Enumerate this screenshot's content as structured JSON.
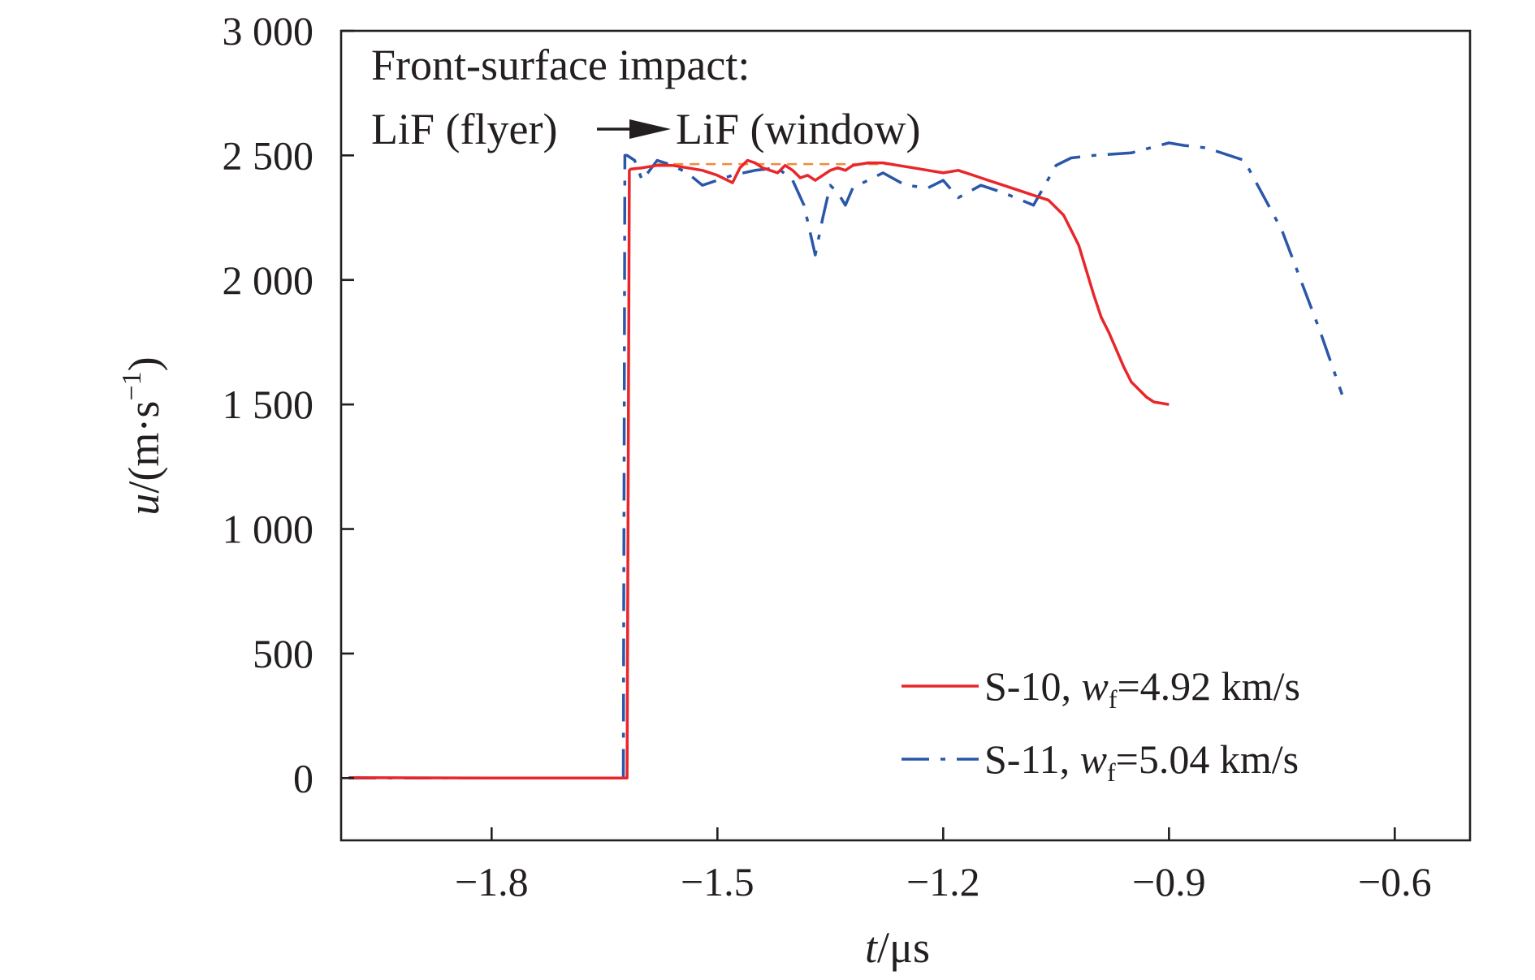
{
  "chart_data": {
    "type": "line",
    "xlim": [
      -2.0,
      -0.5
    ],
    "ylim": [
      -250,
      3000
    ],
    "x_ticks": [
      -1.8,
      -1.5,
      -1.2,
      -0.9,
      -0.6
    ],
    "x_tick_labels": [
      "−1.8",
      "−1.5",
      "−1.2",
      "−0.9",
      "−0.6"
    ],
    "y_ticks": [
      0,
      500,
      1000,
      1500,
      2000,
      2500,
      3000
    ],
    "y_tick_labels": [
      "0",
      "500",
      "1 000",
      "1 500",
      "2 000",
      "2 500",
      "3 000"
    ],
    "xlabel": {
      "var": "t",
      "unit": "/μs"
    },
    "ylabel": {
      "var": "u",
      "unit_open": "/(m·s",
      "sup": "−1",
      "unit_close": ")"
    },
    "annotation": {
      "line1": "Front-surface impact:",
      "line2_left": "LiF (flyer)",
      "line2_right": "LiF (window)"
    },
    "legend_position": "bottom-right",
    "grid": false,
    "series": [
      {
        "name": "S-10",
        "label_prefix": "S-10, ",
        "label_var": "w",
        "label_sub": "f",
        "label_value": "=4.92 km/s",
        "color": "#e8262b",
        "style": "solid",
        "x": [
          -1.99,
          -1.8,
          -1.62,
          -1.617,
          -1.615,
          -1.6,
          -1.58,
          -1.56,
          -1.54,
          -1.52,
          -1.5,
          -1.48,
          -1.47,
          -1.46,
          -1.45,
          -1.44,
          -1.43,
          -1.42,
          -1.41,
          -1.4,
          -1.39,
          -1.38,
          -1.37,
          -1.36,
          -1.35,
          -1.34,
          -1.33,
          -1.32,
          -1.3,
          -1.28,
          -1.26,
          -1.24,
          -1.22,
          -1.2,
          -1.18,
          -1.16,
          -1.14,
          -1.12,
          -1.1,
          -1.08,
          -1.06,
          -1.04,
          -1.03,
          -1.02,
          -1.01,
          -1.0,
          -0.99,
          -0.98,
          -0.97,
          -0.96,
          -0.95,
          -0.94,
          -0.93,
          -0.92,
          -0.91,
          -0.9
        ],
        "y": [
          2,
          0,
          0,
          2440,
          2445,
          2450,
          2460,
          2460,
          2450,
          2440,
          2420,
          2390,
          2450,
          2480,
          2470,
          2450,
          2440,
          2430,
          2460,
          2440,
          2410,
          2420,
          2400,
          2420,
          2440,
          2450,
          2440,
          2460,
          2470,
          2470,
          2460,
          2450,
          2440,
          2430,
          2440,
          2420,
          2400,
          2380,
          2360,
          2340,
          2320,
          2260,
          2200,
          2140,
          2040,
          1940,
          1850,
          1790,
          1720,
          1650,
          1590,
          1560,
          1530,
          1510,
          1505,
          1500
        ]
      },
      {
        "name": "S-11",
        "label_prefix": "S-11, ",
        "label_var": "w",
        "label_sub": "f",
        "label_value": "=5.04 km/s",
        "color": "#2a57a8",
        "style": "dash-dot",
        "x": [
          -1.99,
          -1.8,
          -1.625,
          -1.623,
          -1.62,
          -1.61,
          -1.6,
          -1.58,
          -1.56,
          -1.54,
          -1.52,
          -1.5,
          -1.48,
          -1.45,
          -1.42,
          -1.4,
          -1.385,
          -1.37,
          -1.36,
          -1.35,
          -1.34,
          -1.33,
          -1.32,
          -1.3,
          -1.28,
          -1.25,
          -1.22,
          -1.2,
          -1.18,
          -1.15,
          -1.12,
          -1.08,
          -1.05,
          -1.03,
          -1.0,
          -0.95,
          -0.9,
          -0.88,
          -0.85,
          -0.8,
          -0.75,
          -0.7,
          -0.67
        ],
        "y": [
          0,
          0,
          0,
          2500,
          2500,
          2480,
          2400,
          2480,
          2460,
          2430,
          2380,
          2400,
          2420,
          2440,
          2450,
          2400,
          2300,
          2100,
          2250,
          2380,
          2350,
          2300,
          2370,
          2400,
          2430,
          2380,
          2370,
          2400,
          2330,
          2380,
          2350,
          2300,
          2460,
          2490,
          2500,
          2510,
          2550,
          2540,
          2530,
          2480,
          2200,
          1800,
          1540
        ]
      }
    ],
    "reference_line": {
      "color": "#f08a3c",
      "style": "dashed",
      "x": [
        -1.58,
        -1.26
      ],
      "y": [
        2465,
        2465
      ]
    }
  }
}
